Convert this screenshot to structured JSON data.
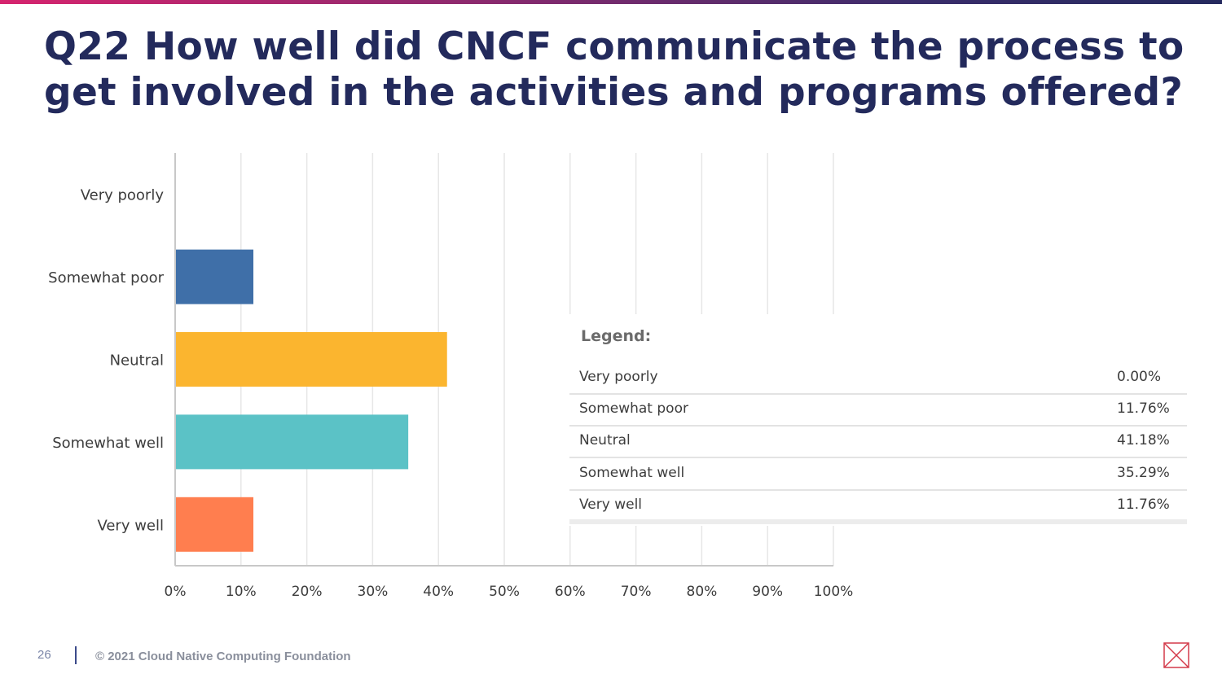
{
  "slide": {
    "title": "Q22 How well did CNCF communicate the process to get involved in the activities and programs offered?",
    "page_number": "26",
    "copyright": "© 2021 Cloud Native Computing Foundation"
  },
  "colors": {
    "title": "#232a5c",
    "grid": "#e6e6e6",
    "axis": "#c8c8c8"
  },
  "legend": {
    "title": "Legend:",
    "rows": [
      {
        "label": "Very poorly",
        "value": "0.00%"
      },
      {
        "label": "Somewhat poor",
        "value": "11.76%"
      },
      {
        "label": "Neutral",
        "value": "41.18%"
      },
      {
        "label": "Somewhat well",
        "value": "35.29%"
      },
      {
        "label": "Very well",
        "value": "11.76%"
      }
    ]
  },
  "chart_data": {
    "type": "bar",
    "orientation": "horizontal",
    "categories": [
      "Very poorly",
      "Somewhat poor",
      "Neutral",
      "Somewhat well",
      "Very well"
    ],
    "values": [
      0.0,
      11.76,
      41.18,
      35.29,
      11.76
    ],
    "colors": [
      "#8fb3d9",
      "#3f6fa8",
      "#fbb52f",
      "#5bc2c6",
      "#ff7e4f"
    ],
    "xlim": [
      0,
      100
    ],
    "x_ticks": [
      "0%",
      "10%",
      "20%",
      "30%",
      "40%",
      "50%",
      "60%",
      "70%",
      "80%",
      "90%",
      "100%"
    ],
    "grid": true
  }
}
